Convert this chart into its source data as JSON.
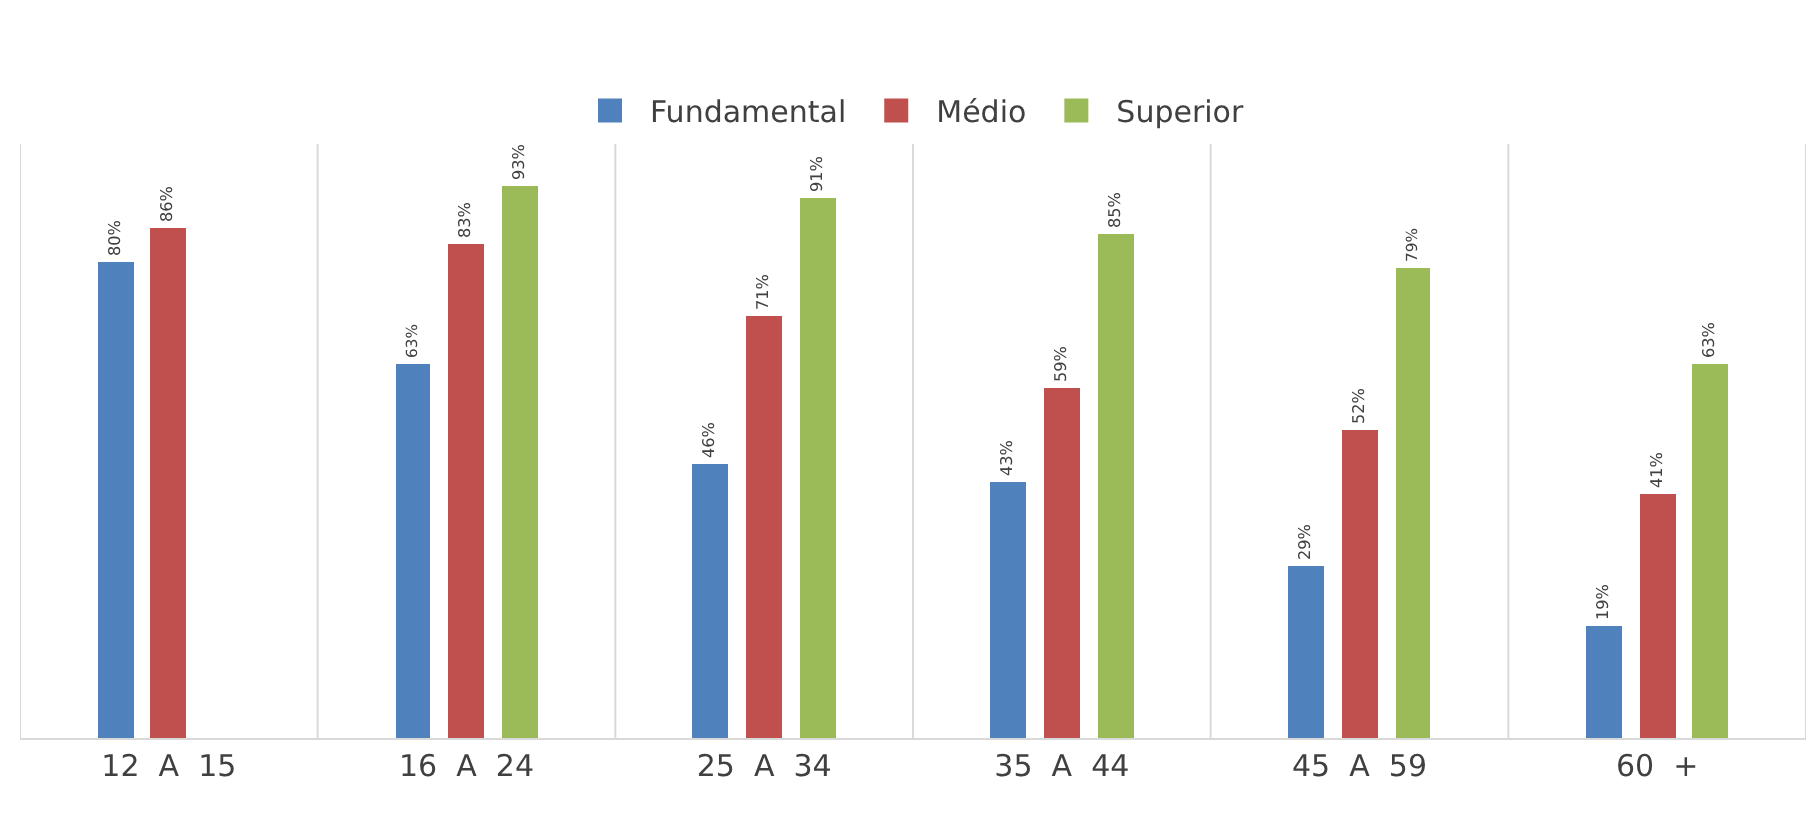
{
  "chart_data": {
    "type": "bar",
    "categories": [
      "12  A  15",
      "16  A  24",
      "25  A  34",
      "35  A  44",
      "45  A  59",
      "60  +"
    ],
    "series": [
      {
        "name": "Fundamental",
        "color": "#4f81bd",
        "values": [
          80,
          63,
          46,
          43,
          29,
          19
        ],
        "value_labels": [
          "80%",
          "63%",
          "46%",
          "43%",
          "29%",
          "19%"
        ]
      },
      {
        "name": "Médio",
        "color": "#c0504d",
        "values": [
          86,
          83,
          71,
          59,
          52,
          41
        ],
        "value_labels": [
          "86%",
          "83%",
          "71%",
          "59%",
          "52%",
          "41%"
        ]
      },
      {
        "name": "Superior",
        "color": "#9bbb59",
        "values": [
          null,
          93,
          91,
          85,
          79,
          63
        ],
        "value_labels": [
          null,
          "93%",
          "91%",
          "85%",
          "79%",
          "63%"
        ]
      }
    ],
    "ylim": [
      0,
      100
    ],
    "tick_labels": "x",
    "grid": "x",
    "legend": "top"
  }
}
